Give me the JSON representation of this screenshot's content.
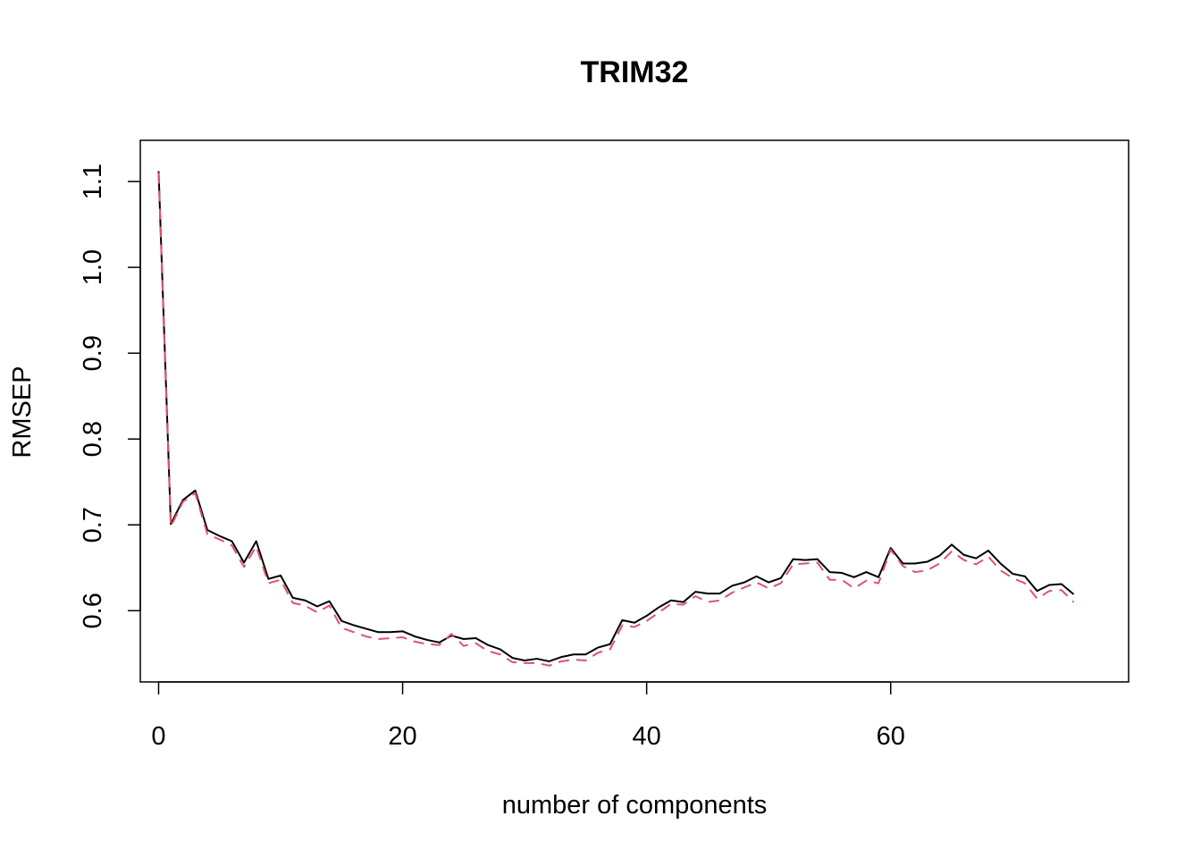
{
  "chart_data": {
    "type": "line",
    "title": "TRIM32",
    "xlabel": "number of components",
    "ylabel": "RMSEP",
    "xlim": [
      -1.5,
      79.5
    ],
    "ylim": [
      0.517,
      1.148
    ],
    "x_ticks": [
      0,
      20,
      40,
      60
    ],
    "x_tick_labels": [
      "0",
      "20",
      "40",
      "60"
    ],
    "y_ticks": [
      0.6,
      0.7,
      0.8,
      0.9,
      1.0,
      1.1
    ],
    "y_tick_labels": [
      "0.6",
      "0.7",
      "0.8",
      "0.9",
      "1.0",
      "1.1"
    ],
    "grid": false,
    "series": [
      {
        "color": "#000000",
        "dash": "solid",
        "x": [
          0,
          1,
          2,
          3,
          4,
          5,
          6,
          7,
          8,
          9,
          10,
          11,
          12,
          13,
          14,
          15,
          16,
          17,
          18,
          19,
          20,
          21,
          22,
          23,
          24,
          25,
          26,
          27,
          28,
          29,
          30,
          31,
          32,
          33,
          34,
          35,
          36,
          37,
          38,
          39,
          40,
          41,
          42,
          43,
          44,
          45,
          46,
          47,
          48,
          49,
          50,
          51,
          52,
          53,
          54,
          55,
          56,
          57,
          58,
          59,
          60,
          61,
          62,
          63,
          64,
          65,
          66,
          67,
          68,
          69,
          70,
          71,
          72,
          73,
          74,
          75
        ],
        "values": [
          1.112,
          0.701,
          0.729,
          0.74,
          0.694,
          0.687,
          0.681,
          0.656,
          0.681,
          0.637,
          0.641,
          0.615,
          0.612,
          0.605,
          0.611,
          0.588,
          0.583,
          0.579,
          0.575,
          0.575,
          0.576,
          0.57,
          0.566,
          0.563,
          0.571,
          0.567,
          0.568,
          0.56,
          0.555,
          0.545,
          0.542,
          0.544,
          0.541,
          0.546,
          0.549,
          0.549,
          0.557,
          0.561,
          0.589,
          0.586,
          0.594,
          0.604,
          0.612,
          0.61,
          0.622,
          0.62,
          0.62,
          0.629,
          0.633,
          0.64,
          0.633,
          0.638,
          0.66,
          0.659,
          0.66,
          0.645,
          0.644,
          0.639,
          0.645,
          0.639,
          0.673,
          0.655,
          0.655,
          0.657,
          0.664,
          0.677,
          0.665,
          0.661,
          0.67,
          0.655,
          0.643,
          0.64,
          0.623,
          0.63,
          0.631,
          0.619
        ]
      },
      {
        "color": "#DF536B",
        "dash": "dashed",
        "x": [
          0,
          1,
          2,
          3,
          4,
          5,
          6,
          7,
          8,
          9,
          10,
          11,
          12,
          13,
          14,
          15,
          16,
          17,
          18,
          19,
          20,
          21,
          22,
          23,
          24,
          25,
          26,
          27,
          28,
          29,
          30,
          31,
          32,
          33,
          34,
          35,
          36,
          37,
          38,
          39,
          40,
          41,
          42,
          43,
          44,
          45,
          46,
          47,
          48,
          49,
          50,
          51,
          52,
          53,
          54,
          55,
          56,
          57,
          58,
          59,
          60,
          61,
          62,
          63,
          64,
          65,
          66,
          67,
          68,
          69,
          70,
          71,
          72,
          73,
          74,
          75
        ],
        "values": [
          1.11,
          0.698,
          0.727,
          0.737,
          0.689,
          0.683,
          0.676,
          0.651,
          0.675,
          0.632,
          0.636,
          0.609,
          0.606,
          0.598,
          0.606,
          0.58,
          0.575,
          0.57,
          0.567,
          0.568,
          0.569,
          0.564,
          0.561,
          0.56,
          0.573,
          0.559,
          0.562,
          0.553,
          0.549,
          0.54,
          0.539,
          0.539,
          0.536,
          0.541,
          0.543,
          0.542,
          0.551,
          0.555,
          0.583,
          0.581,
          0.588,
          0.598,
          0.608,
          0.607,
          0.617,
          0.61,
          0.612,
          0.621,
          0.627,
          0.633,
          0.626,
          0.632,
          0.654,
          0.655,
          0.656,
          0.636,
          0.636,
          0.626,
          0.635,
          0.632,
          0.671,
          0.652,
          0.645,
          0.647,
          0.655,
          0.669,
          0.659,
          0.654,
          0.663,
          0.647,
          0.638,
          0.632,
          0.614,
          0.623,
          0.624,
          0.61
        ]
      }
    ]
  }
}
